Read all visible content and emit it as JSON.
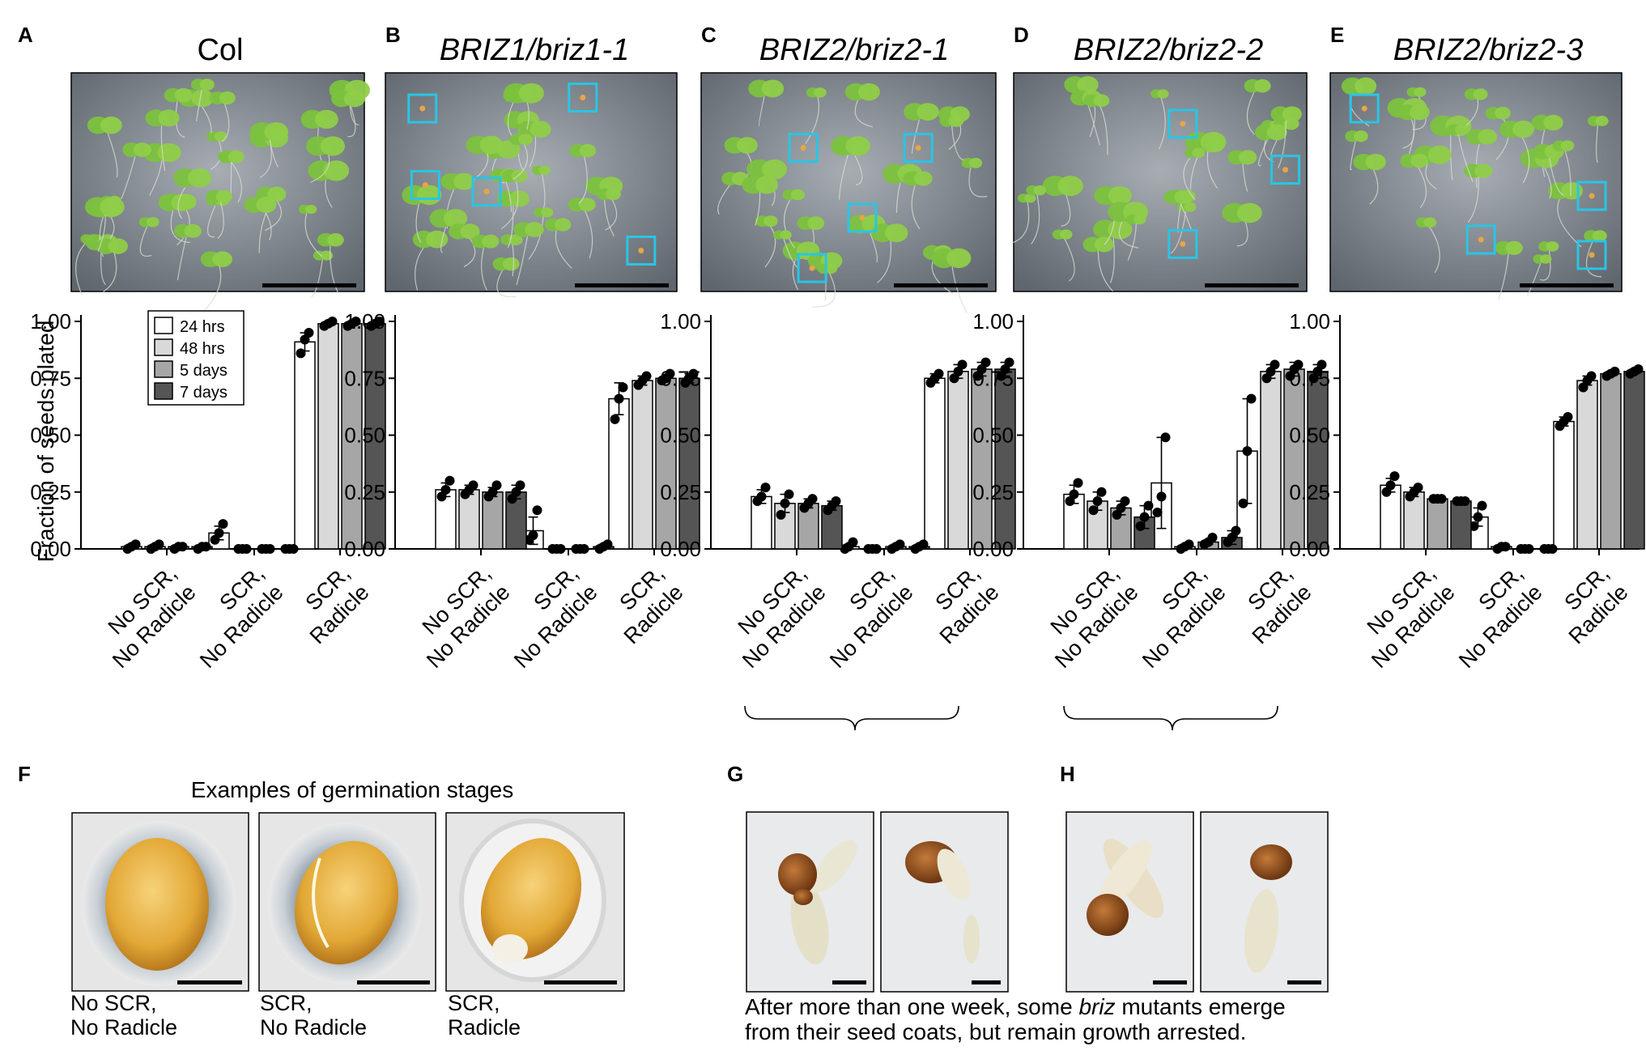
{
  "panel_letters": [
    "A",
    "B",
    "C",
    "D",
    "E",
    "F",
    "G",
    "H"
  ],
  "colors": {
    "s24": "#ffffff",
    "s48": "#d9d9d9",
    "s5d": "#a6a6a6",
    "s7d": "#555555",
    "box": "#29c5e6",
    "dot": "#000000",
    "plate_bg": "#6f7882",
    "leaf": "#7cc23e"
  },
  "y_axis_label": "Fraction of seeds plated",
  "legend": [
    "24 hrs",
    "48 hrs",
    "5 days",
    "7 days"
  ],
  "category_lines": [
    [
      "No SCR,",
      "No Radicle"
    ],
    [
      "SCR,",
      "No Radicle"
    ],
    [
      "SCR,",
      "Radicle"
    ]
  ],
  "chart_data": [
    {
      "type": "bar",
      "title": "Col",
      "title_italic": false,
      "categories": [
        "No SCR, No Radicle",
        "SCR, No Radicle",
        "SCR, Radicle"
      ],
      "ylabel": "Fraction of seeds plated",
      "ylim": [
        0,
        1.0
      ],
      "yticks": [
        "0.00",
        "0.25",
        "0.50",
        "0.75",
        "1.00"
      ],
      "series": [
        {
          "name": "24 hrs",
          "values": [
            0.01,
            0.07,
            0.91
          ],
          "err": [
            0.01,
            0.03,
            0.04
          ],
          "points": [
            [
              0.0,
              0.01,
              0.02
            ],
            [
              0.04,
              0.07,
              0.11
            ],
            [
              0.86,
              0.92,
              0.95
            ]
          ]
        },
        {
          "name": "48 hrs",
          "values": [
            0.01,
            0.0,
            0.99
          ],
          "err": [
            0.01,
            0.0,
            0.01
          ],
          "points": [
            [
              0.0,
              0.01,
              0.02
            ],
            [
              0.0,
              0.0,
              0.0
            ],
            [
              0.98,
              0.99,
              1.0
            ]
          ]
        },
        {
          "name": "5 days",
          "values": [
            0.01,
            0.0,
            0.99
          ],
          "err": [
            0.0,
            0.0,
            0.01
          ],
          "points": [
            [
              0.0,
              0.01,
              0.01
            ],
            [
              0.0,
              0.0,
              0.0
            ],
            [
              0.98,
              0.99,
              1.0
            ]
          ]
        },
        {
          "name": "7 days",
          "values": [
            0.01,
            0.0,
            0.99
          ],
          "err": [
            0.0,
            0.0,
            0.01
          ],
          "points": [
            [
              0.0,
              0.01,
              0.01
            ],
            [
              0.0,
              0.0,
              0.0
            ],
            [
              0.98,
              0.99,
              1.0
            ]
          ]
        }
      ]
    },
    {
      "type": "bar",
      "title": "BRIZ1/briz1-1",
      "title_italic": true,
      "categories": [
        "No SCR, No Radicle",
        "SCR, No Radicle",
        "SCR, Radicle"
      ],
      "ylim": [
        0,
        1.0
      ],
      "series": [
        {
          "name": "24 hrs",
          "values": [
            0.26,
            0.08,
            0.66
          ],
          "err": [
            0.03,
            0.06,
            0.07
          ],
          "points": [
            [
              0.23,
              0.26,
              0.3
            ],
            [
              0.04,
              0.06,
              0.17
            ],
            [
              0.57,
              0.66,
              0.71
            ]
          ]
        },
        {
          "name": "48 hrs",
          "values": [
            0.26,
            0.0,
            0.74
          ],
          "err": [
            0.02,
            0.0,
            0.02
          ],
          "points": [
            [
              0.24,
              0.26,
              0.28
            ],
            [
              0.0,
              0.0,
              0.0
            ],
            [
              0.72,
              0.74,
              0.76
            ]
          ]
        },
        {
          "name": "5 days",
          "values": [
            0.25,
            0.0,
            0.75
          ],
          "err": [
            0.02,
            0.0,
            0.01
          ],
          "points": [
            [
              0.23,
              0.25,
              0.28
            ],
            [
              0.0,
              0.0,
              0.0
            ],
            [
              0.74,
              0.75,
              0.77
            ]
          ]
        },
        {
          "name": "7 days",
          "values": [
            0.25,
            0.01,
            0.75
          ],
          "err": [
            0.03,
            0.01,
            0.02
          ],
          "points": [
            [
              0.22,
              0.25,
              0.28
            ],
            [
              0.0,
              0.01,
              0.02
            ],
            [
              0.73,
              0.75,
              0.77
            ]
          ]
        }
      ]
    },
    {
      "type": "bar",
      "title": "BRIZ2/briz2-1",
      "title_italic": true,
      "categories": [
        "No SCR, No Radicle",
        "SCR, No Radicle",
        "SCR, Radicle"
      ],
      "ylim": [
        0,
        1.0
      ],
      "series": [
        {
          "name": "24 hrs",
          "values": [
            0.23,
            0.01,
            0.75
          ],
          "err": [
            0.03,
            0.01,
            0.02
          ],
          "points": [
            [
              0.21,
              0.23,
              0.27
            ],
            [
              0.0,
              0.01,
              0.03
            ],
            [
              0.73,
              0.75,
              0.77
            ]
          ]
        },
        {
          "name": "48 hrs",
          "values": [
            0.2,
            0.0,
            0.78
          ],
          "err": [
            0.04,
            0.0,
            0.03
          ],
          "points": [
            [
              0.15,
              0.2,
              0.24
            ],
            [
              0.0,
              0.0,
              0.0
            ],
            [
              0.75,
              0.78,
              0.81
            ]
          ]
        },
        {
          "name": "5 days",
          "values": [
            0.2,
            0.01,
            0.79
          ],
          "err": [
            0.02,
            0.01,
            0.03
          ],
          "points": [
            [
              0.18,
              0.2,
              0.22
            ],
            [
              0.0,
              0.01,
              0.02
            ],
            [
              0.76,
              0.79,
              0.82
            ]
          ]
        },
        {
          "name": "7 days",
          "values": [
            0.19,
            0.01,
            0.79
          ],
          "err": [
            0.02,
            0.01,
            0.03
          ],
          "points": [
            [
              0.17,
              0.19,
              0.21
            ],
            [
              0.0,
              0.01,
              0.02
            ],
            [
              0.76,
              0.79,
              0.82
            ]
          ]
        }
      ]
    },
    {
      "type": "bar",
      "title": "BRIZ2/briz2-2",
      "title_italic": true,
      "categories": [
        "No SCR, No Radicle",
        "SCR, No Radicle",
        "SCR, Radicle"
      ],
      "ylim": [
        0,
        1.0
      ],
      "series": [
        {
          "name": "24 hrs",
          "values": [
            0.24,
            0.29,
            0.43
          ],
          "err": [
            0.04,
            0.2,
            0.23
          ],
          "points": [
            [
              0.21,
              0.24,
              0.29
            ],
            [
              0.16,
              0.23,
              0.49
            ],
            [
              0.2,
              0.43,
              0.66
            ]
          ]
        },
        {
          "name": "48 hrs",
          "values": [
            0.21,
            0.01,
            0.78
          ],
          "err": [
            0.04,
            0.01,
            0.03
          ],
          "points": [
            [
              0.17,
              0.21,
              0.25
            ],
            [
              0.0,
              0.01,
              0.02
            ],
            [
              0.75,
              0.78,
              0.81
            ]
          ]
        },
        {
          "name": "5 days",
          "values": [
            0.18,
            0.03,
            0.79
          ],
          "err": [
            0.03,
            0.01,
            0.03
          ],
          "points": [
            [
              0.15,
              0.18,
              0.21
            ],
            [
              0.02,
              0.03,
              0.05
            ],
            [
              0.76,
              0.79,
              0.81
            ]
          ]
        },
        {
          "name": "7 days",
          "values": [
            0.14,
            0.05,
            0.78
          ],
          "err": [
            0.05,
            0.03,
            0.03
          ],
          "points": [
            [
              0.1,
              0.14,
              0.19
            ],
            [
              0.03,
              0.05,
              0.08
            ],
            [
              0.75,
              0.78,
              0.81
            ]
          ]
        }
      ]
    },
    {
      "type": "bar",
      "title": "BRIZ2/briz2-3",
      "title_italic": true,
      "categories": [
        "No SCR, No Radicle",
        "SCR, No Radicle",
        "SCR, Radicle"
      ],
      "ylim": [
        0,
        1.0
      ],
      "series": [
        {
          "name": "24 hrs",
          "values": [
            0.28,
            0.14,
            0.56
          ],
          "err": [
            0.03,
            0.04,
            0.02
          ],
          "points": [
            [
              0.25,
              0.28,
              0.32
            ],
            [
              0.1,
              0.14,
              0.19
            ],
            [
              0.54,
              0.56,
              0.58
            ]
          ]
        },
        {
          "name": "48 hrs",
          "values": [
            0.25,
            0.01,
            0.74
          ],
          "err": [
            0.02,
            0.0,
            0.02
          ],
          "points": [
            [
              0.23,
              0.25,
              0.27
            ],
            [
              0.0,
              0.01,
              0.01
            ],
            [
              0.71,
              0.74,
              0.76
            ]
          ]
        },
        {
          "name": "5 days",
          "values": [
            0.22,
            0.0,
            0.77
          ],
          "err": [
            0.0,
            0.0,
            0.01
          ],
          "points": [
            [
              0.22,
              0.22,
              0.22
            ],
            [
              0.0,
              0.0,
              0.0
            ],
            [
              0.76,
              0.77,
              0.78
            ]
          ]
        },
        {
          "name": "7 days",
          "values": [
            0.21,
            0.0,
            0.78
          ],
          "err": [
            0.0,
            0.0,
            0.01
          ],
          "points": [
            [
              0.21,
              0.21,
              0.21
            ],
            [
              0.0,
              0.0,
              0.0
            ],
            [
              0.77,
              0.78,
              0.79
            ]
          ]
        }
      ]
    }
  ],
  "panel_f": {
    "title": "Examples of germination stages",
    "captions": [
      [
        "No SCR,",
        "No Radicle"
      ],
      [
        "SCR,",
        "No Radicle"
      ],
      [
        "SCR,",
        "Radicle"
      ]
    ]
  },
  "panel_gh": {
    "caption_line1_pre": "After more than one week, some ",
    "caption_line1_italic": "briz",
    "caption_line1_post": " mutants emerge",
    "caption_line2": "from their seed coats, but remain growth arrested."
  }
}
